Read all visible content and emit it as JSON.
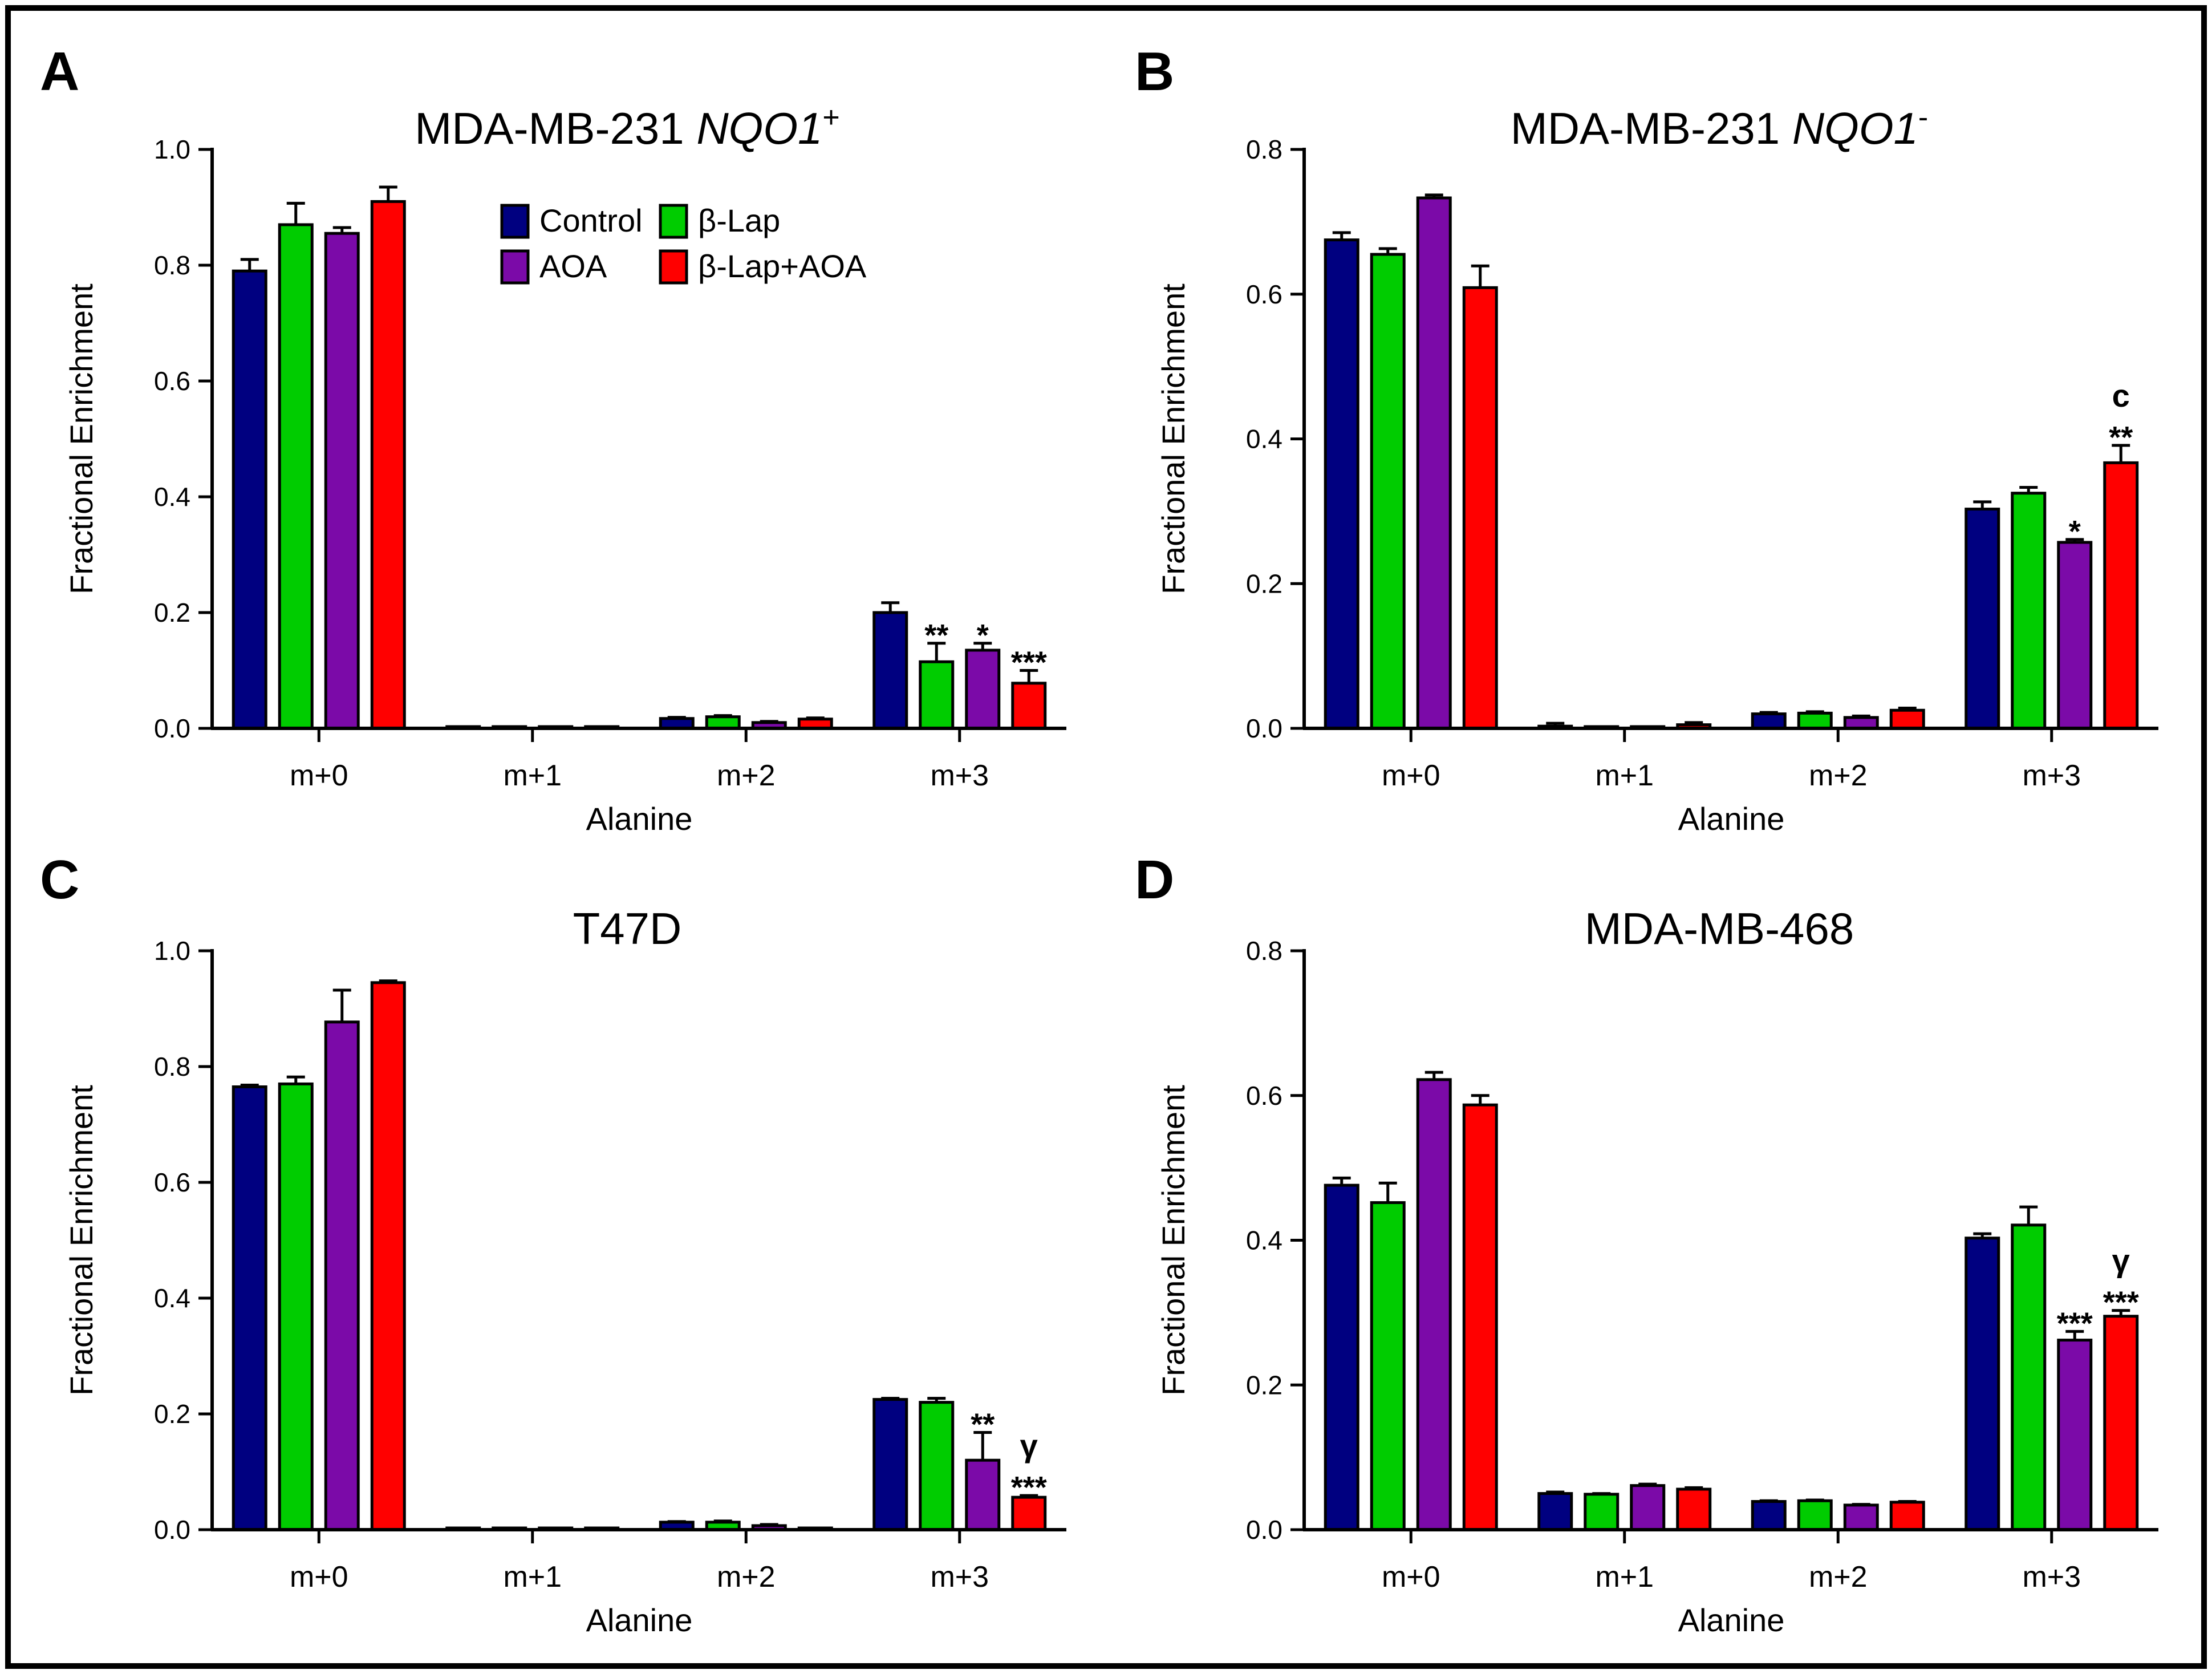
{
  "legend": [
    {
      "name": "Control",
      "color": "#000080"
    },
    {
      "name": "β-Lap",
      "color": "#00CC00"
    },
    {
      "name": "AOA",
      "color": "#7B0AA8"
    },
    {
      "name": "β-Lap+AOA",
      "color": "#FF0000"
    }
  ],
  "chart_data": [
    {
      "panel": "A",
      "type": "bar",
      "title": "MDA-MB-231 ",
      "title_italic": "NQO1",
      "title_sup": "+",
      "xlabel": "Alanine",
      "ylabel": "Fractional Enrichment",
      "ylim": [
        0,
        1.0
      ],
      "yticks": [
        "0.0",
        "0.2",
        "0.4",
        "0.6",
        "0.8",
        "1.0"
      ],
      "categories": [
        "m+0",
        "m+1",
        "m+2",
        "m+3"
      ],
      "series": [
        {
          "name": "Control",
          "values": [
            0.79,
            0.0,
            0.017,
            0.2
          ],
          "errors": [
            0.02,
            0.0,
            0.002,
            0.017
          ]
        },
        {
          "name": "β-Lap",
          "values": [
            0.87,
            0.0,
            0.02,
            0.115
          ],
          "errors": [
            0.037,
            0.0,
            0.002,
            0.032
          ]
        },
        {
          "name": "AOA",
          "values": [
            0.855,
            0.002,
            0.01,
            0.135
          ],
          "errors": [
            0.01,
            0.001,
            0.002,
            0.012
          ]
        },
        {
          "name": "β-Lap+AOA",
          "values": [
            0.91,
            0.0,
            0.016,
            0.078
          ],
          "errors": [
            0.025,
            0.0,
            0.002,
            0.022
          ]
        }
      ],
      "annotations": [
        {
          "category": "m+3",
          "series": "β-Lap",
          "lines": [
            "**"
          ]
        },
        {
          "category": "m+3",
          "series": "AOA",
          "lines": [
            "*"
          ]
        },
        {
          "category": "m+3",
          "series": "β-Lap+AOA",
          "lines": [
            "***"
          ]
        }
      ],
      "show_legend": true
    },
    {
      "panel": "B",
      "type": "bar",
      "title": "MDA-MB-231 ",
      "title_italic": "NQO1",
      "title_sup": "-",
      "xlabel": "Alanine",
      "ylabel": "Fractional Enrichment",
      "ylim": [
        0,
        0.8
      ],
      "yticks": [
        "0.0",
        "0.2",
        "0.4",
        "0.6",
        "0.8"
      ],
      "categories": [
        "m+0",
        "m+1",
        "m+2",
        "m+3"
      ],
      "series": [
        {
          "name": "Control",
          "values": [
            0.675,
            0.003,
            0.02,
            0.303
          ],
          "errors": [
            0.01,
            0.004,
            0.002,
            0.01
          ]
        },
        {
          "name": "β-Lap",
          "values": [
            0.655,
            0.001,
            0.021,
            0.325
          ],
          "errors": [
            0.008,
            0.001,
            0.002,
            0.008
          ]
        },
        {
          "name": "AOA",
          "values": [
            0.733,
            0.0,
            0.015,
            0.257
          ],
          "errors": [
            0.004,
            0.0,
            0.002,
            0.004
          ]
        },
        {
          "name": "β-Lap+AOA",
          "values": [
            0.609,
            0.005,
            0.025,
            0.367
          ],
          "errors": [
            0.03,
            0.003,
            0.003,
            0.024
          ]
        }
      ],
      "annotations": [
        {
          "category": "m+3",
          "series": "AOA",
          "lines": [
            "*"
          ]
        },
        {
          "category": "m+3",
          "series": "β-Lap+AOA",
          "lines": [
            "c",
            "**"
          ]
        }
      ],
      "show_legend": false
    },
    {
      "panel": "C",
      "type": "bar",
      "title": "T47D",
      "title_italic": "",
      "title_sup": "",
      "xlabel": "Alanine",
      "ylabel": "Fractional Enrichment",
      "ylim": [
        0,
        1.0
      ],
      "yticks": [
        "0.0",
        "0.2",
        "0.4",
        "0.6",
        "0.8",
        "1.0"
      ],
      "categories": [
        "m+0",
        "m+1",
        "m+2",
        "m+3"
      ],
      "series": [
        {
          "name": "Control",
          "values": [
            0.765,
            0.0,
            0.013,
            0.225
          ],
          "errors": [
            0.003,
            0.0,
            0.001,
            0.002
          ]
        },
        {
          "name": "β-Lap",
          "values": [
            0.77,
            0.0,
            0.013,
            0.22
          ],
          "errors": [
            0.012,
            0.0,
            0.002,
            0.007
          ]
        },
        {
          "name": "AOA",
          "values": [
            0.877,
            0.0,
            0.007,
            0.12
          ],
          "errors": [
            0.055,
            0.0,
            0.002,
            0.048
          ]
        },
        {
          "name": "β-Lap+AOA",
          "values": [
            0.945,
            0.0,
            0.002,
            0.056
          ],
          "errors": [
            0.003,
            0.0,
            0.001,
            0.003
          ]
        }
      ],
      "annotations": [
        {
          "category": "m+3",
          "series": "AOA",
          "lines": [
            "**"
          ]
        },
        {
          "category": "m+3",
          "series": "β-Lap+AOA",
          "lines": [
            "γ",
            "***"
          ]
        }
      ],
      "show_legend": false
    },
    {
      "panel": "D",
      "type": "bar",
      "title": "MDA-MB-468",
      "title_italic": "",
      "title_sup": "",
      "xlabel": "Alanine",
      "ylabel": "Fractional Enrichment",
      "ylim": [
        0,
        0.8
      ],
      "yticks": [
        "0.0",
        "0.2",
        "0.4",
        "0.6",
        "0.8"
      ],
      "categories": [
        "m+0",
        "m+1",
        "m+2",
        "m+3"
      ],
      "series": [
        {
          "name": "Control",
          "values": [
            0.476,
            0.05,
            0.039,
            0.403
          ],
          "errors": [
            0.01,
            0.002,
            0.001,
            0.006
          ]
        },
        {
          "name": "β-Lap",
          "values": [
            0.452,
            0.049,
            0.04,
            0.421
          ],
          "errors": [
            0.027,
            0.001,
            0.001,
            0.025
          ]
        },
        {
          "name": "AOA",
          "values": [
            0.622,
            0.061,
            0.034,
            0.262
          ],
          "errors": [
            0.01,
            0.002,
            0.001,
            0.012
          ]
        },
        {
          "name": "β-Lap+AOA",
          "values": [
            0.587,
            0.056,
            0.038,
            0.295
          ],
          "errors": [
            0.013,
            0.002,
            0.001,
            0.008
          ]
        }
      ],
      "annotations": [
        {
          "category": "m+3",
          "series": "AOA",
          "lines": [
            "***"
          ]
        },
        {
          "category": "m+3",
          "series": "β-Lap+AOA",
          "lines": [
            "γ",
            "***"
          ]
        }
      ],
      "show_legend": false
    }
  ]
}
